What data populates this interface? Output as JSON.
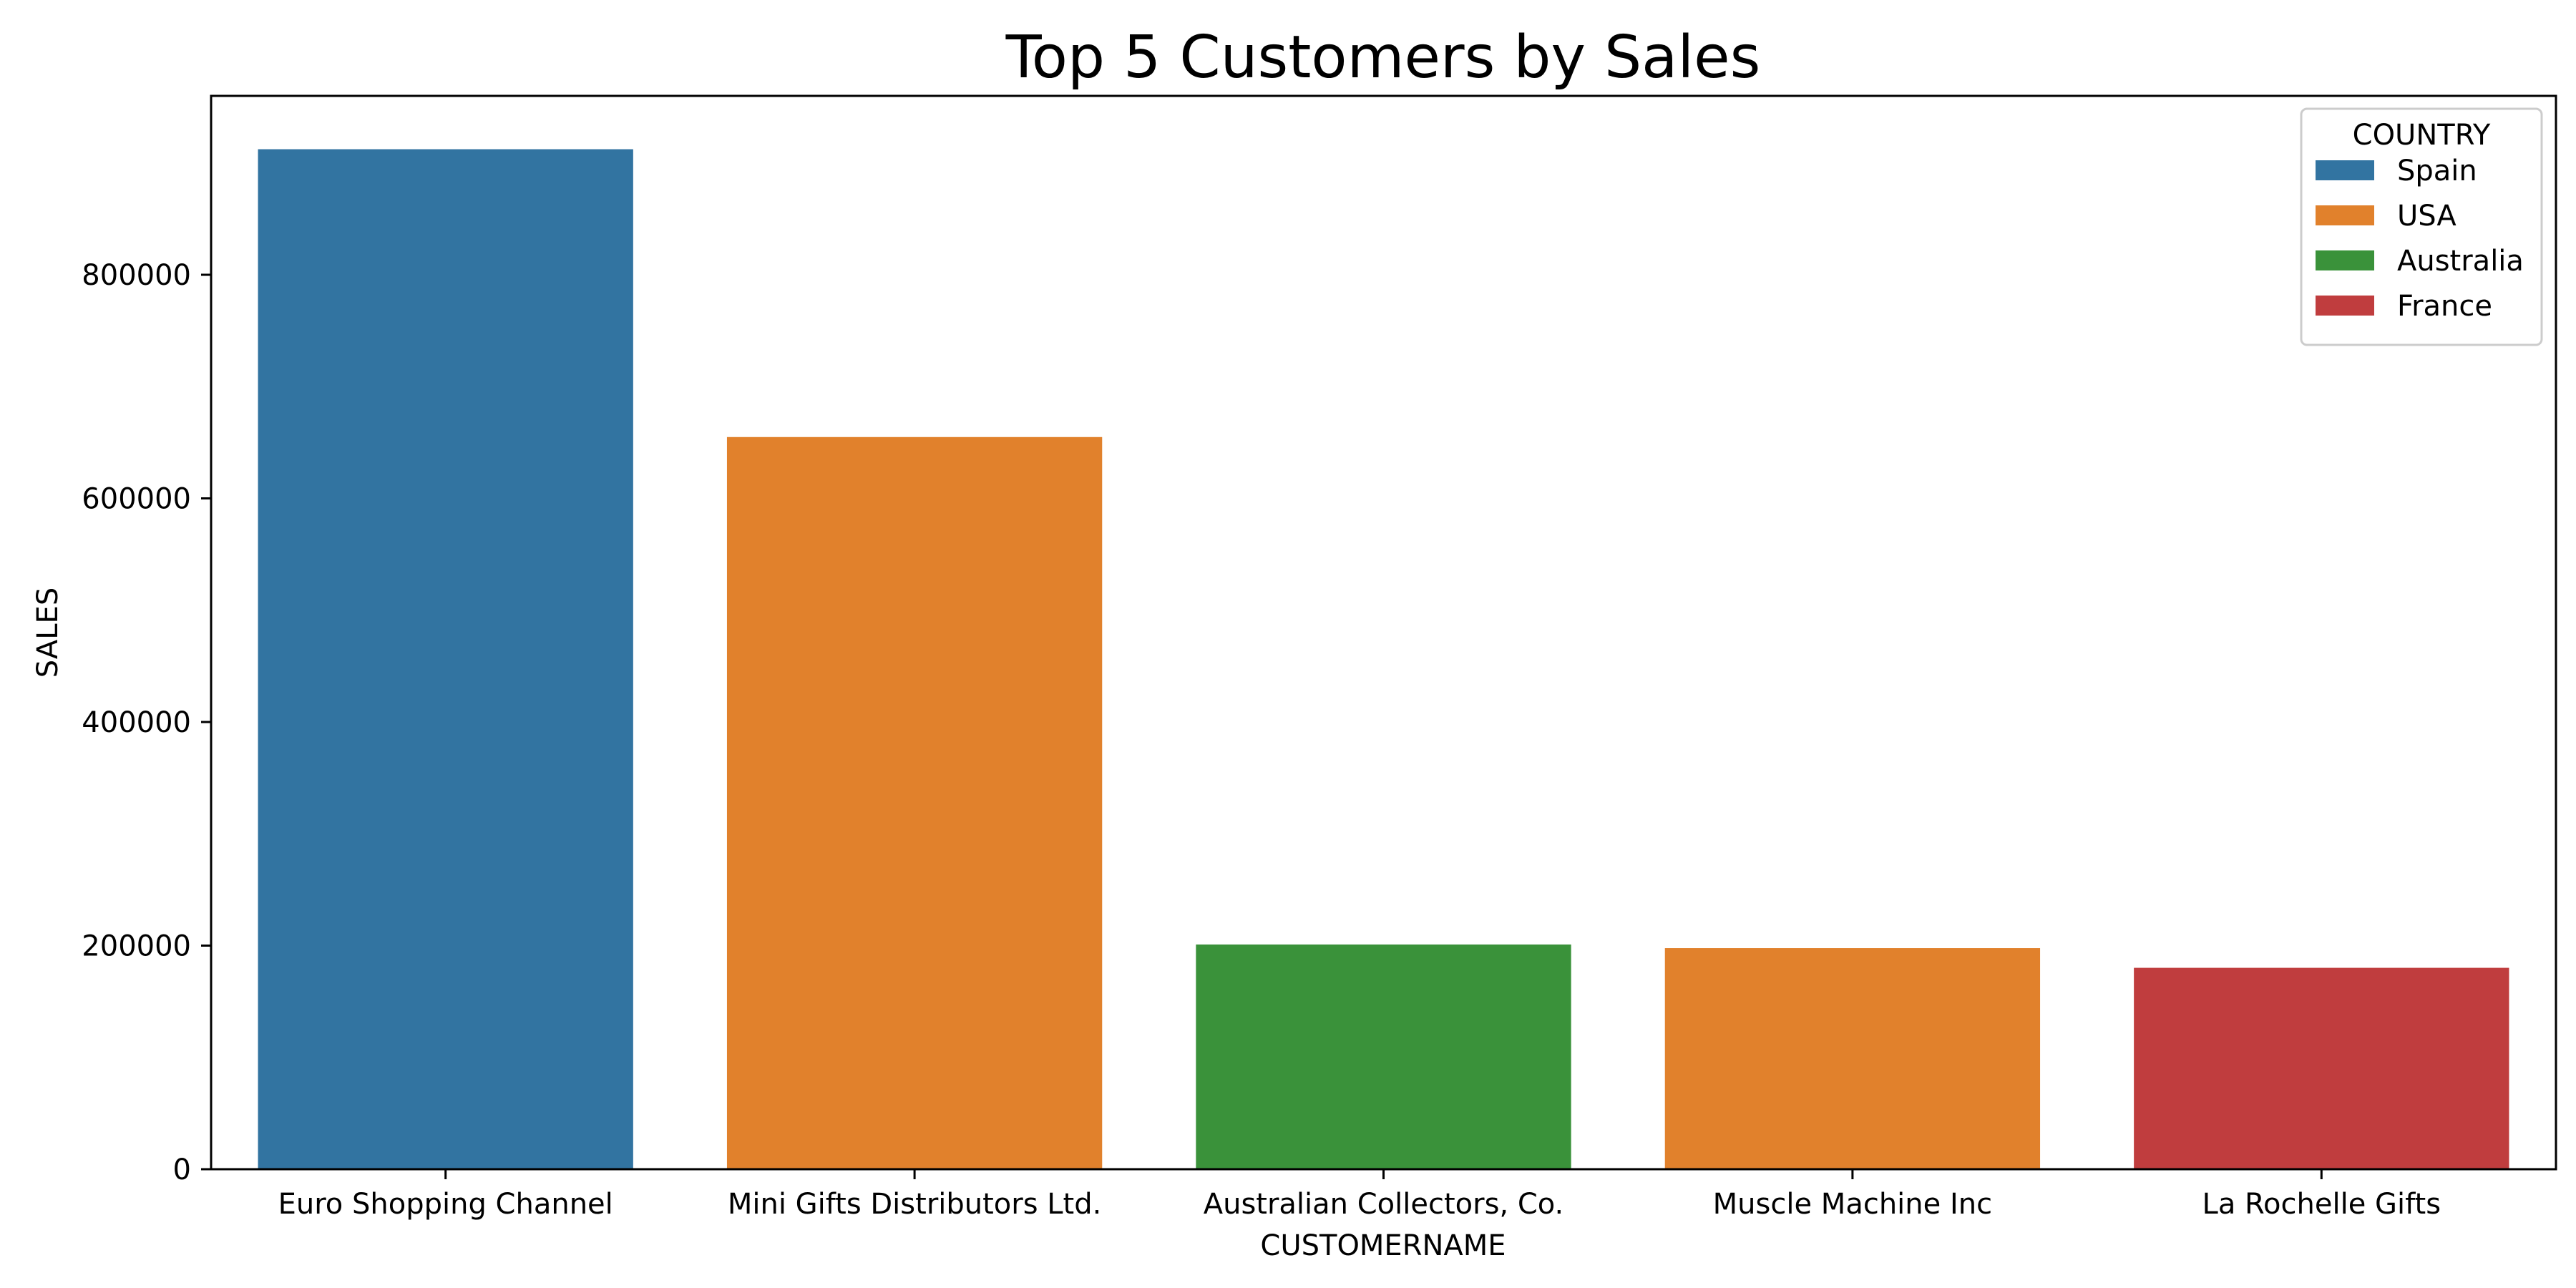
{
  "chart_data": {
    "type": "bar",
    "title": "Top 5 Customers by Sales",
    "xlabel": "CUSTOMERNAME",
    "ylabel": "SALES",
    "ylim": [
      0,
      960000
    ],
    "yticks": [
      0,
      200000,
      400000,
      600000,
      800000
    ],
    "ytick_labels": [
      "0",
      "200000",
      "400000",
      "600000",
      "800000"
    ],
    "categories": [
      "Euro Shopping Channel",
      "Mini Gifts Distributors Ltd.",
      "Australian Collectors, Co.",
      "Muscle Machine Inc",
      "La Rochelle Gifts"
    ],
    "values": [
      912294,
      654858,
      200995,
      197737,
      180125
    ],
    "bar_groups": [
      "Spain",
      "USA",
      "Australia",
      "USA",
      "France"
    ],
    "grid": false,
    "legend": {
      "title": "COUNTRY",
      "placement": "top-right",
      "entries": [
        {
          "label": "Spain",
          "color": "#3274a1"
        },
        {
          "label": "USA",
          "color": "#e1812c"
        },
        {
          "label": "Australia",
          "color": "#3a923a"
        },
        {
          "label": "France",
          "color": "#c03d3e"
        }
      ]
    }
  }
}
